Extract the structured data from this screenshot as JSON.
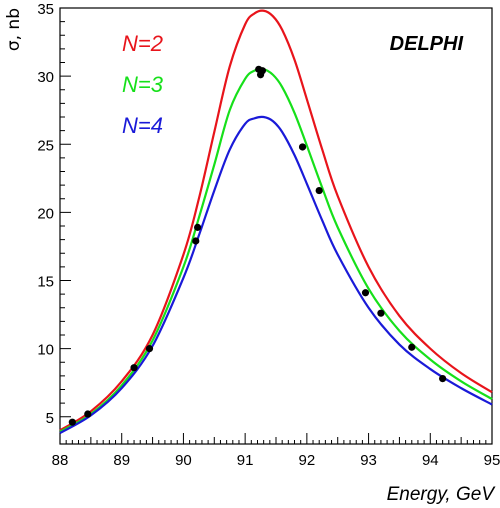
{
  "chart_data": {
    "type": "line",
    "title": "",
    "experiment_label": "DELPHI",
    "xlabel": "Energy, GeV",
    "ylabel": "σ, nb",
    "xlim": [
      88,
      95
    ],
    "ylim": [
      3,
      35
    ],
    "x_ticks": [
      88,
      89,
      90,
      91,
      92,
      93,
      94,
      95
    ],
    "x_tick_labels": [
      "88",
      "89",
      "90",
      "91",
      "92",
      "93",
      "94",
      "95"
    ],
    "y_ticks": [
      5,
      10,
      15,
      20,
      25,
      30,
      35
    ],
    "y_tick_labels": [
      "5",
      "10",
      "15",
      "20",
      "25",
      "30",
      "35"
    ],
    "grid": false,
    "legend_position": "top-left",
    "series": [
      {
        "name": "N=2",
        "color": "#e8141b",
        "x": [
          88,
          88.5,
          89,
          89.5,
          90,
          90.25,
          90.5,
          90.75,
          91,
          91.15,
          91.3,
          91.45,
          91.6,
          91.8,
          92,
          92.25,
          92.5,
          93,
          93.5,
          94,
          94.5,
          95
        ],
        "y": [
          4.0,
          5.4,
          7.6,
          11.0,
          16.9,
          21.0,
          25.9,
          30.7,
          33.8,
          34.6,
          34.8,
          34.4,
          33.4,
          31.2,
          28.3,
          24.6,
          21.2,
          16.0,
          12.4,
          10.0,
          8.2,
          6.8
        ]
      },
      {
        "name": "N=3",
        "color": "#16e01a",
        "x": [
          88,
          88.5,
          89,
          89.5,
          90,
          90.25,
          90.5,
          90.75,
          91,
          91.15,
          91.3,
          91.45,
          91.6,
          91.8,
          92,
          92.25,
          92.5,
          93,
          93.5,
          94,
          94.5,
          95
        ],
        "y": [
          3.9,
          5.2,
          7.3,
          10.6,
          16.0,
          19.6,
          23.5,
          27.5,
          29.8,
          30.4,
          30.5,
          30.1,
          29.2,
          27.3,
          24.9,
          21.8,
          18.9,
          14.4,
          11.3,
          9.2,
          7.6,
          6.3
        ]
      },
      {
        "name": "N=4",
        "color": "#1a1ad8",
        "x": [
          88,
          88.5,
          89,
          89.5,
          90,
          90.25,
          90.5,
          90.75,
          91,
          91.15,
          91.3,
          91.45,
          91.6,
          91.8,
          92,
          92.25,
          92.5,
          93,
          93.5,
          94,
          94.5,
          95
        ],
        "y": [
          3.8,
          5.1,
          7.1,
          10.2,
          15.2,
          18.3,
          21.6,
          24.6,
          26.5,
          26.9,
          27.0,
          26.7,
          25.9,
          24.2,
          22.1,
          19.4,
          16.9,
          13.0,
          10.3,
          8.5,
          7.1,
          5.9
        ]
      }
    ],
    "points": {
      "name": "data",
      "color": "#000000",
      "x": [
        88.2,
        88.45,
        89.2,
        89.45,
        90.2,
        90.23,
        91.22,
        91.25,
        91.28,
        91.93,
        92.2,
        92.95,
        93.2,
        93.7,
        94.2
      ],
      "y": [
        4.6,
        5.2,
        8.6,
        10.0,
        17.9,
        18.9,
        30.5,
        30.1,
        30.4,
        24.8,
        21.6,
        14.1,
        12.6,
        10.1,
        7.8
      ]
    }
  }
}
